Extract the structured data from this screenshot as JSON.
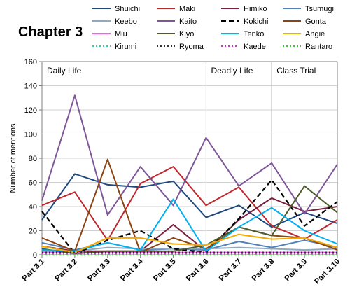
{
  "chart_data": {
    "type": "line",
    "title": "Chapter 3",
    "xlabel": "",
    "ylabel": "Number of mentions",
    "ylim": [
      0,
      160
    ],
    "yticks": [
      0,
      20,
      40,
      60,
      80,
      100,
      120,
      140,
      160
    ],
    "grid": "horizontal",
    "legend_position": "top-right",
    "categories": [
      "Part 3.1",
      "Part 3.2",
      "Part 3.3",
      "Part 3.4",
      "Part 3.5",
      "Part 3.6",
      "Part 3.7",
      "Part 3.8",
      "Part 3.9",
      "Part 3.10"
    ],
    "sections": [
      {
        "label": "Daily Life",
        "start_index": 0
      },
      {
        "label": "Deadly Life",
        "start_index": 5
      },
      {
        "label": "Class Trial",
        "start_index": 7
      }
    ],
    "series": [
      {
        "name": "Shuichi",
        "color": "#1F497D",
        "dash": "solid",
        "values": [
          29,
          67,
          58,
          56,
          61,
          31,
          41,
          23,
          35,
          26
        ]
      },
      {
        "name": "Maki",
        "color": "#C0272D",
        "dash": "solid",
        "values": [
          41,
          52,
          12,
          59,
          73,
          41,
          56,
          24,
          13,
          29
        ]
      },
      {
        "name": "Himiko",
        "color": "#7A1F3D",
        "dash": "solid",
        "values": [
          7,
          3,
          3,
          3,
          25,
          3,
          29,
          47,
          36,
          40
        ]
      },
      {
        "name": "Tsumugi",
        "color": "#4F81BD",
        "dash": "solid",
        "values": [
          10,
          4,
          10,
          4,
          5,
          4,
          11,
          6,
          12,
          6
        ]
      },
      {
        "name": "Keebo",
        "color": "#8EA9C1",
        "dash": "solid",
        "values": [
          3,
          3,
          6,
          5,
          5,
          5,
          6,
          5,
          4,
          5
        ]
      },
      {
        "name": "Kaito",
        "color": "#7F5799",
        "dash": "solid",
        "values": [
          45,
          132,
          33,
          73,
          41,
          97,
          57,
          76,
          34,
          75
        ]
      },
      {
        "name": "Kokichi",
        "color": "#000000",
        "dash": "dashed",
        "values": [
          36,
          1,
          12,
          20,
          5,
          2,
          30,
          62,
          24,
          44
        ]
      },
      {
        "name": "Gonta",
        "color": "#8B4513",
        "dash": "solid",
        "values": [
          14,
          3,
          79,
          2,
          14,
          5,
          23,
          16,
          14,
          4
        ]
      },
      {
        "name": "Miu",
        "color": "#FF55FF",
        "dash": "solid",
        "values": [
          2,
          2,
          2,
          2,
          2,
          2,
          2,
          2,
          2,
          2
        ]
      },
      {
        "name": "Kiyo",
        "color": "#4D5A2A",
        "dash": "solid",
        "values": [
          5,
          1,
          3,
          3,
          3,
          8,
          23,
          16,
          57,
          35
        ]
      },
      {
        "name": "Tenko",
        "color": "#00B0F0",
        "dash": "solid",
        "values": [
          4,
          3,
          10,
          4,
          46,
          3,
          23,
          39,
          20,
          9
        ]
      },
      {
        "name": "Angie",
        "color": "#F2A900",
        "dash": "solid",
        "values": [
          7,
          2,
          14,
          14,
          9,
          8,
          17,
          13,
          14,
          6
        ]
      },
      {
        "name": "Kirumi",
        "color": "#2FD39B",
        "dash": "dotted",
        "values": [
          1,
          1,
          1,
          1,
          1,
          1,
          1,
          1,
          1,
          1
        ]
      },
      {
        "name": "Ryoma",
        "color": "#333333",
        "dash": "dotted",
        "values": [
          2,
          2,
          2,
          2,
          2,
          2,
          2,
          2,
          2,
          2
        ]
      },
      {
        "name": "Kaede",
        "color": "#CC33CC",
        "dash": "dotted",
        "values": [
          1,
          1,
          1,
          1,
          1,
          1,
          1,
          1,
          1,
          1
        ]
      },
      {
        "name": "Rantaro",
        "color": "#33CC33",
        "dash": "dotted",
        "values": [
          0,
          0,
          0,
          0,
          0,
          0,
          0,
          0,
          0,
          0
        ]
      }
    ]
  }
}
